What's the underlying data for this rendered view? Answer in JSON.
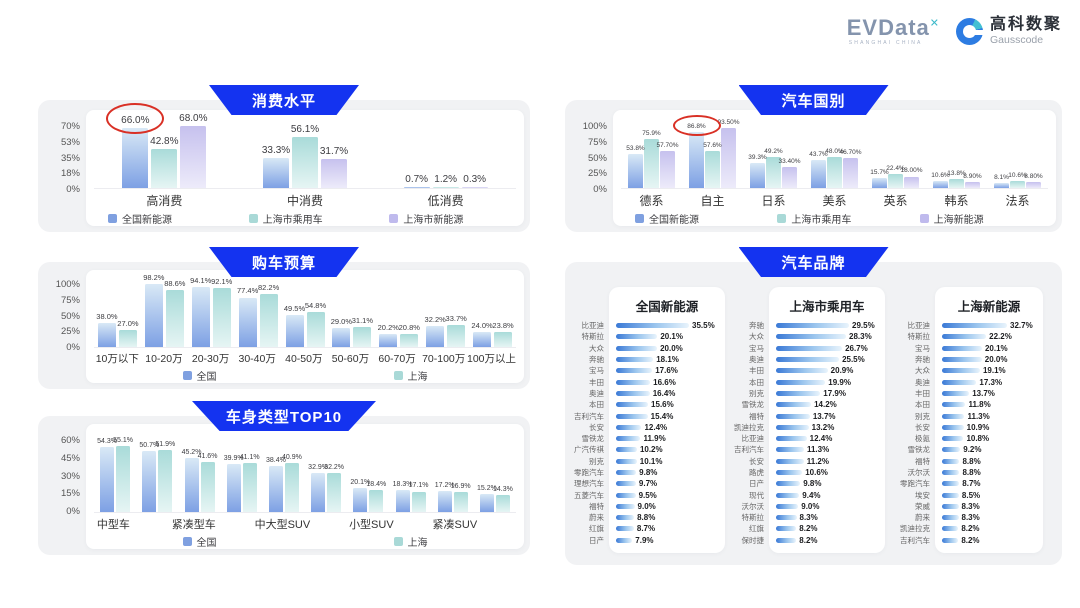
{
  "header": {
    "evdata_logo": {
      "wordmark": "EVData",
      "sup": "✕",
      "subtext": "SHANGHAI CHINA"
    },
    "gausscode_logo": {
      "cn": "高科数聚",
      "en": "Gausscode"
    }
  },
  "colors": {
    "banner_blue": "#1433f0",
    "panel_gray": "#f1f2f4",
    "annotation_red": "#d93025",
    "series_blue": "#7fa0e0",
    "series_teal": "#a9d9d7",
    "series_purple": "#bfbaed",
    "brand_bar_gradient": [
      "#3a79d6",
      "#e9f4fc"
    ]
  },
  "chart_data": [
    {
      "id": "consumption",
      "type": "bar",
      "title": "消费水平",
      "y_ticks": [
        "70%",
        "53%",
        "35%",
        "18%",
        "0%"
      ],
      "y_max": 70,
      "grid": false,
      "legend_position": "bottom",
      "categories": [
        "高消费",
        "中消费",
        "低消费"
      ],
      "series": [
        {
          "name": "全国新能源",
          "values": [
            66.0,
            33.3,
            0.7
          ],
          "labels": [
            "66.0%",
            "33.3%",
            "0.7%"
          ]
        },
        {
          "name": "上海市乘用车",
          "values": [
            42.8,
            56.1,
            1.2
          ],
          "labels": [
            "42.8%",
            "56.1%",
            "1.2%"
          ]
        },
        {
          "name": "上海市新能源",
          "values": [
            68.0,
            31.7,
            0.3
          ],
          "labels": [
            "68.0%",
            "31.7%",
            "0.3%"
          ]
        }
      ],
      "annotation": {
        "shape": "red-ellipse",
        "category_index": 0,
        "series_index": 0,
        "around_label": "66.0%"
      }
    },
    {
      "id": "country",
      "type": "bar",
      "title": "汽车国别",
      "y_ticks": [
        "100%",
        "75%",
        "50%",
        "25%",
        "0%"
      ],
      "y_max": 100,
      "grid": false,
      "legend_position": "bottom",
      "categories": [
        "德系",
        "自主",
        "日系",
        "美系",
        "英系",
        "韩系",
        "法系"
      ],
      "series": [
        {
          "name": "全国新能源",
          "values": [
            53.8,
            86.8,
            39.3,
            43.7,
            15.7,
            10.6,
            8.1
          ],
          "labels": [
            "53.8%",
            "86.8%",
            "39.3%",
            "43.7%",
            "15.7%",
            "10.6%",
            "8.1%"
          ]
        },
        {
          "name": "上海市乘用车",
          "values": [
            75.9,
            57.6,
            49.2,
            48.0,
            22.4,
            13.8,
            10.6
          ],
          "labels": [
            "75.9%",
            "57.6%",
            "49.2%",
            "48.0%",
            "22.4%",
            "13.8%",
            "10.6%"
          ]
        },
        {
          "name": "上海新能源",
          "values": [
            57.7,
            93.5,
            33.4,
            46.7,
            18.0,
            8.9,
            8.8
          ],
          "labels": [
            "57.70%",
            "93.50%",
            "33.40%",
            "46.70%",
            "18.00%",
            "8.90%",
            "8.80%"
          ]
        }
      ],
      "annotation": {
        "shape": "red-ellipse",
        "category_index": 1,
        "series_index": 0,
        "around_label": "86.8%"
      }
    },
    {
      "id": "budget",
      "type": "bar",
      "title": "购车预算",
      "y_ticks": [
        "100%",
        "75%",
        "50%",
        "25%",
        "0%"
      ],
      "y_max": 100,
      "grid": false,
      "legend_position": "bottom",
      "categories": [
        "10万以下",
        "10-20万",
        "20-30万",
        "30-40万",
        "40-50万",
        "50-60万",
        "60-70万",
        "70-100万",
        "100万以上"
      ],
      "series": [
        {
          "name": "全国",
          "values": [
            38.0,
            98.2,
            94.1,
            77.4,
            49.5,
            29.0,
            20.2,
            32.2,
            24.0
          ],
          "labels": [
            "38.0%",
            "98.2%",
            "94.1%",
            "77.4%",
            "49.5%",
            "29.0%",
            "20.2%",
            "32.2%",
            "24.0%"
          ]
        },
        {
          "name": "上海",
          "values": [
            27.0,
            88.6,
            92.1,
            82.2,
            54.8,
            31.1,
            20.8,
            33.7,
            23.8
          ],
          "labels": [
            "27.0%",
            "88.6%",
            "92.1%",
            "82.2%",
            "54.8%",
            "31.1%",
            "20.8%",
            "33.7%",
            "23.8%"
          ]
        }
      ]
    },
    {
      "id": "body_type",
      "type": "bar",
      "title": "车身类型TOP10",
      "y_ticks": [
        "60%",
        "45%",
        "30%",
        "15%",
        "0%"
      ],
      "y_max": 60,
      "grid": false,
      "legend_position": "bottom",
      "categories": [
        "中型车",
        "",
        "紧凑型车",
        "",
        "中大型SUV",
        "",
        "小型SUV",
        "",
        "紧凑SUV",
        ""
      ],
      "series": [
        {
          "name": "全国",
          "values": [
            54.3,
            50.7,
            45.2,
            39.9,
            38.4,
            32.9,
            20.1,
            18.3,
            17.2,
            15.2
          ],
          "labels": [
            "54.3%",
            "50.7%",
            "45.2%",
            "39.9%",
            "38.4%",
            "32.9%",
            "20.1%",
            "18.3%",
            "17.2%",
            "15.2%"
          ]
        },
        {
          "name": "上海",
          "values": [
            55.1,
            51.9,
            41.6,
            41.1,
            40.9,
            32.2,
            18.4,
            17.1,
            16.9,
            14.3
          ],
          "labels": [
            "55.1%",
            "51.9%",
            "41.6%",
            "41.1%",
            "40.9%",
            "32.2%",
            "18.4%",
            "17.1%",
            "16.9%",
            "14.3%"
          ]
        }
      ]
    },
    {
      "id": "brands",
      "type": "table",
      "title": "汽车品牌",
      "columns": [
        {
          "title": "全国新能源",
          "items": [
            {
              "name": "比亚迪",
              "value": 35.5,
              "label": "35.5%"
            },
            {
              "name": "特斯拉",
              "value": 20.1,
              "label": "20.1%"
            },
            {
              "name": "大众",
              "value": 20.0,
              "label": "20.0%"
            },
            {
              "name": "奔驰",
              "value": 18.1,
              "label": "18.1%"
            },
            {
              "name": "宝马",
              "value": 17.6,
              "label": "17.6%"
            },
            {
              "name": "丰田",
              "value": 16.6,
              "label": "16.6%"
            },
            {
              "name": "奥迪",
              "value": 16.4,
              "label": "16.4%"
            },
            {
              "name": "本田",
              "value": 15.6,
              "label": "15.6%"
            },
            {
              "name": "吉利汽车",
              "value": 15.4,
              "label": "15.4%"
            },
            {
              "name": "长安",
              "value": 12.4,
              "label": "12.4%"
            },
            {
              "name": "雪铁龙",
              "value": 11.9,
              "label": "11.9%"
            },
            {
              "name": "广汽传祺",
              "value": 10.2,
              "label": "10.2%"
            },
            {
              "name": "别克",
              "value": 10.1,
              "label": "10.1%"
            },
            {
              "name": "零跑汽车",
              "value": 9.8,
              "label": "9.8%"
            },
            {
              "name": "理想汽车",
              "value": 9.7,
              "label": "9.7%"
            },
            {
              "name": "五菱汽车",
              "value": 9.5,
              "label": "9.5%"
            },
            {
              "name": "福特",
              "value": 9.0,
              "label": "9.0%"
            },
            {
              "name": "蔚来",
              "value": 8.8,
              "label": "8.8%"
            },
            {
              "name": "红旗",
              "value": 8.7,
              "label": "8.7%"
            },
            {
              "name": "日产",
              "value": 7.9,
              "label": "7.9%"
            }
          ]
        },
        {
          "title": "上海市乘用车",
          "items": [
            {
              "name": "奔驰",
              "value": 29.5,
              "label": "29.5%"
            },
            {
              "name": "大众",
              "value": 28.3,
              "label": "28.3%"
            },
            {
              "name": "宝马",
              "value": 26.7,
              "label": "26.7%"
            },
            {
              "name": "奥迪",
              "value": 25.5,
              "label": "25.5%"
            },
            {
              "name": "丰田",
              "value": 20.9,
              "label": "20.9%"
            },
            {
              "name": "本田",
              "value": 19.9,
              "label": "19.9%"
            },
            {
              "name": "别克",
              "value": 17.9,
              "label": "17.9%"
            },
            {
              "name": "雪铁龙",
              "value": 14.2,
              "label": "14.2%"
            },
            {
              "name": "福特",
              "value": 13.7,
              "label": "13.7%"
            },
            {
              "name": "凯迪拉克",
              "value": 13.2,
              "label": "13.2%"
            },
            {
              "name": "比亚迪",
              "value": 12.4,
              "label": "12.4%"
            },
            {
              "name": "吉利汽车",
              "value": 11.3,
              "label": "11.3%"
            },
            {
              "name": "长安",
              "value": 11.2,
              "label": "11.2%"
            },
            {
              "name": "路虎",
              "value": 10.6,
              "label": "10.6%"
            },
            {
              "name": "日产",
              "value": 9.8,
              "label": "9.8%"
            },
            {
              "name": "现代",
              "value": 9.4,
              "label": "9.4%"
            },
            {
              "name": "沃尔沃",
              "value": 9.0,
              "label": "9.0%"
            },
            {
              "name": "特斯拉",
              "value": 8.3,
              "label": "8.3%"
            },
            {
              "name": "红旗",
              "value": 8.2,
              "label": "8.2%"
            },
            {
              "name": "保时捷",
              "value": 8.2,
              "label": "8.2%"
            }
          ]
        },
        {
          "title": "上海新能源",
          "items": [
            {
              "name": "比亚迪",
              "value": 32.7,
              "label": "32.7%"
            },
            {
              "name": "特斯拉",
              "value": 22.2,
              "label": "22.2%"
            },
            {
              "name": "宝马",
              "value": 20.1,
              "label": "20.1%"
            },
            {
              "name": "奔驰",
              "value": 20.0,
              "label": "20.0%"
            },
            {
              "name": "大众",
              "value": 19.1,
              "label": "19.1%"
            },
            {
              "name": "奥迪",
              "value": 17.3,
              "label": "17.3%"
            },
            {
              "name": "丰田",
              "value": 13.7,
              "label": "13.7%"
            },
            {
              "name": "本田",
              "value": 11.8,
              "label": "11.8%"
            },
            {
              "name": "别克",
              "value": 11.3,
              "label": "11.3%"
            },
            {
              "name": "长安",
              "value": 10.9,
              "label": "10.9%"
            },
            {
              "name": "极氪",
              "value": 10.8,
              "label": "10.8%"
            },
            {
              "name": "雪铁龙",
              "value": 9.2,
              "label": "9.2%"
            },
            {
              "name": "福特",
              "value": 8.8,
              "label": "8.8%"
            },
            {
              "name": "沃尔沃",
              "value": 8.8,
              "label": "8.8%"
            },
            {
              "name": "零跑汽车",
              "value": 8.7,
              "label": "8.7%"
            },
            {
              "name": "埃安",
              "value": 8.5,
              "label": "8.5%"
            },
            {
              "name": "荣威",
              "value": 8.3,
              "label": "8.3%"
            },
            {
              "name": "蔚来",
              "value": 8.3,
              "label": "8.3%"
            },
            {
              "name": "凯迪拉克",
              "value": 8.2,
              "label": "8.2%"
            },
            {
              "name": "吉利汽车",
              "value": 8.2,
              "label": "8.2%"
            }
          ]
        }
      ]
    }
  ]
}
